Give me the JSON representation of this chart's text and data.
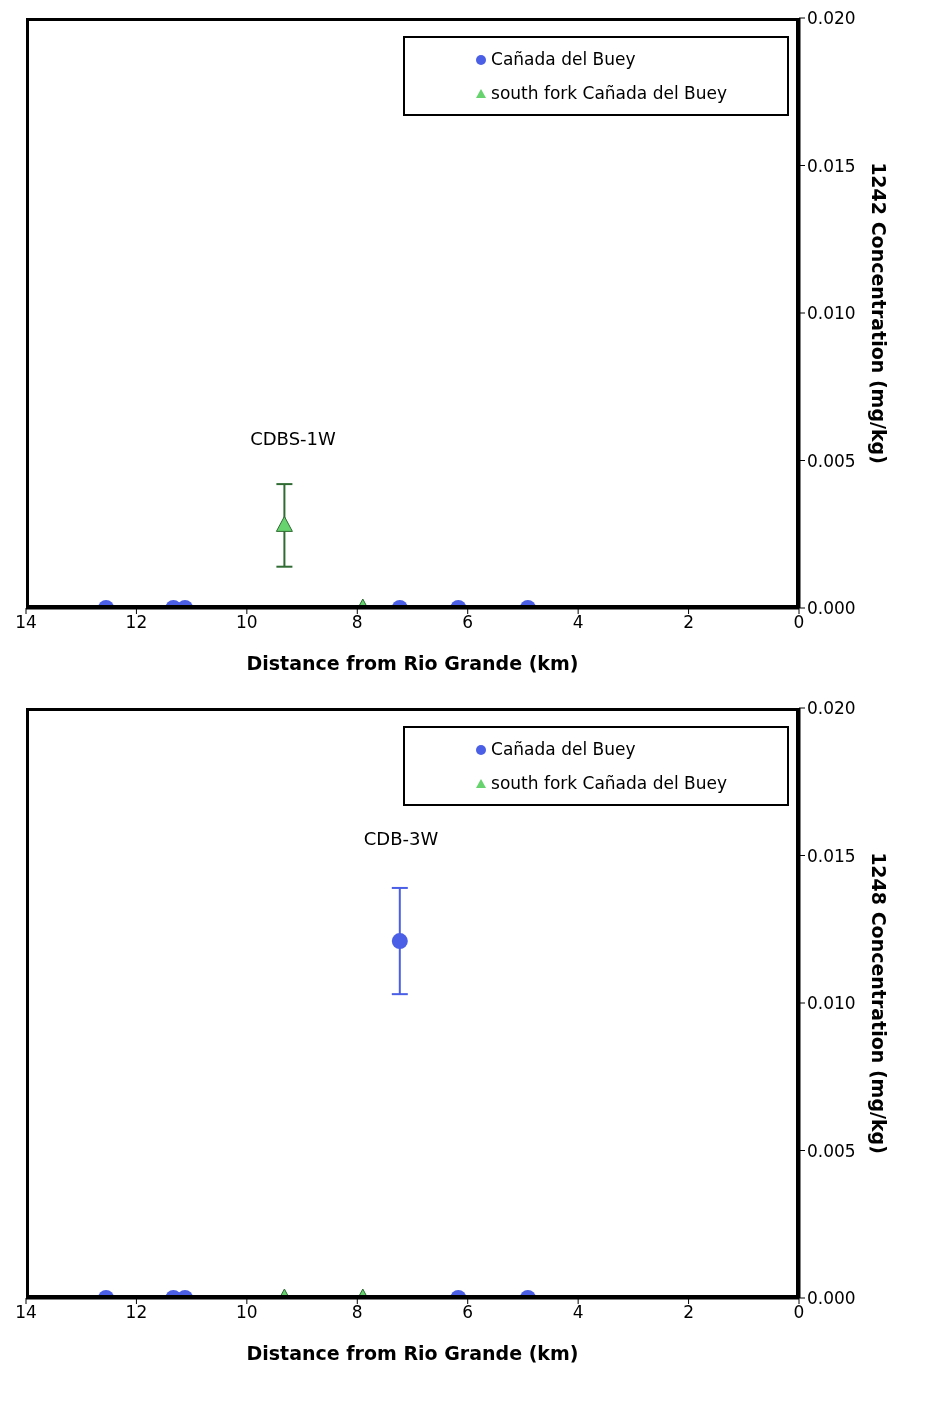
{
  "chart_data": [
    {
      "type": "scatter",
      "xlabel": "Distance from Rio Grande (km)",
      "ylabel": "1242 Concentration (mg/kg)",
      "xlim": [
        14,
        0
      ],
      "xticks": [
        14,
        12,
        10,
        8,
        6,
        4,
        2,
        0
      ],
      "ylim": [
        0,
        0.02
      ],
      "yticks": [
        {
          "value": 0,
          "label": "0.000"
        },
        {
          "value": 0.005,
          "label": "0.005"
        },
        {
          "value": 0.01,
          "label": "0.010"
        },
        {
          "value": 0.015,
          "label": "0.015"
        },
        {
          "value": 0.02,
          "label": "0.020"
        }
      ],
      "grid": false,
      "legend": "top right",
      "annotations": [
        "CDBS-1W"
      ],
      "series": [
        {
          "name": "Cañada del Buey",
          "color": "#4a5ee6",
          "marker": "circle",
          "x": [
            12.55,
            11.33,
            11.12,
            7.23,
            6.17,
            4.91
          ],
          "values": [
            0,
            0,
            0,
            0,
            0,
            0
          ]
        },
        {
          "name": "south fork Cañada del Buey",
          "color": "#66d36e",
          "marker": "triangle",
          "x": [
            9.32,
            7.9
          ],
          "values": [
            0.0028,
            0
          ],
          "errors": [
            [
              0.0014,
              0.0042
            ],
            null
          ]
        }
      ]
    },
    {
      "type": "scatter",
      "xlabel": "Distance from Rio Grande (km)",
      "ylabel": "1248 Concentration (mg/kg)",
      "xlim": [
        14,
        0
      ],
      "xticks": [
        14,
        12,
        10,
        8,
        6,
        4,
        2,
        0
      ],
      "ylim": [
        0,
        0.02
      ],
      "yticks": [
        {
          "value": 0,
          "label": "0.000"
        },
        {
          "value": 0.005,
          "label": "0.005"
        },
        {
          "value": 0.01,
          "label": "0.010"
        },
        {
          "value": 0.015,
          "label": "0.015"
        },
        {
          "value": 0.02,
          "label": "0.020"
        }
      ],
      "grid": false,
      "legend": "top right",
      "annotations": [
        "CDB-3W"
      ],
      "series": [
        {
          "name": "Cañada del Buey",
          "color": "#4a5ee6",
          "marker": "circle",
          "x": [
            12.55,
            11.33,
            11.12,
            7.23,
            6.17,
            4.91
          ],
          "values": [
            0,
            0,
            0,
            0.0121,
            0,
            0
          ],
          "errors": [
            null,
            null,
            null,
            [
              0.0103,
              0.0139
            ],
            null,
            null
          ]
        },
        {
          "name": "south fork Cañada del Buey",
          "color": "#66d36e",
          "marker": "triangle",
          "x": [
            9.32,
            7.9
          ],
          "values": [
            0,
            0
          ]
        }
      ]
    }
  ]
}
